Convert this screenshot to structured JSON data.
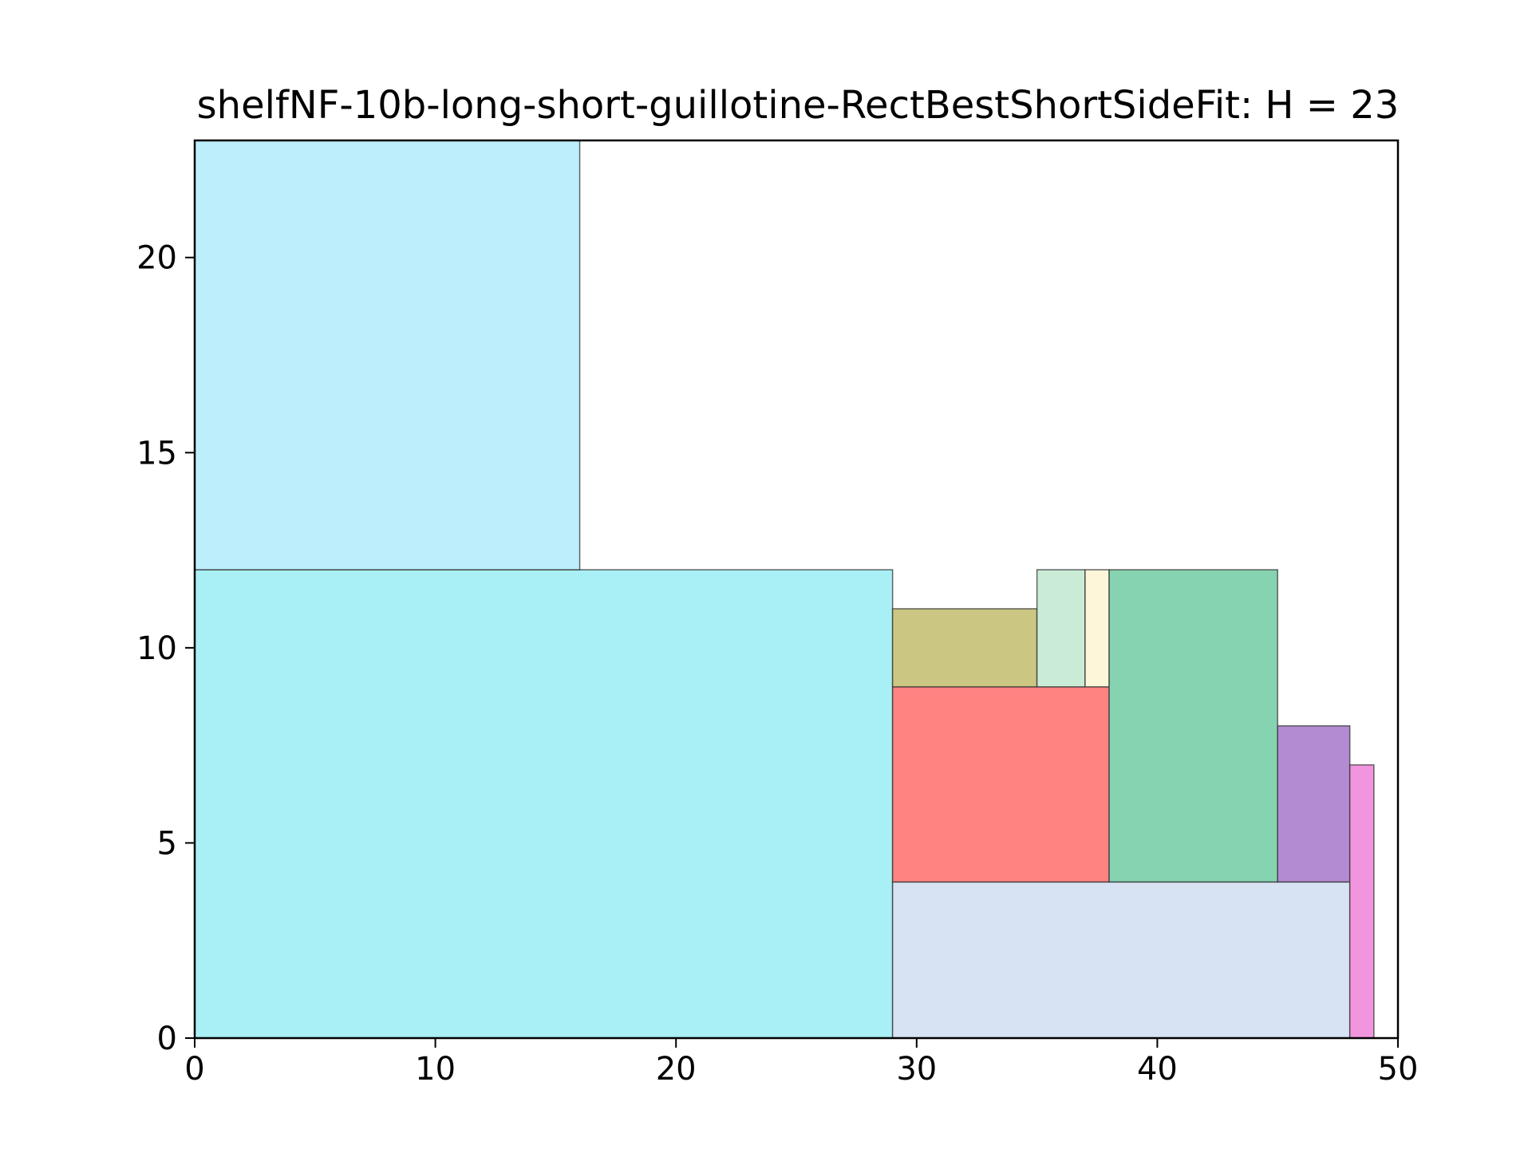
{
  "chart_data": {
    "type": "rectangle-packing",
    "title": "shelfNF-10b-long-short-guillotine-RectBestShortSideFit: H = 23",
    "xlim": [
      0,
      50
    ],
    "ylim": [
      0,
      23
    ],
    "x_ticks": [
      0,
      10,
      20,
      30,
      40,
      50
    ],
    "y_ticks": [
      0,
      5,
      10,
      15,
      20
    ],
    "grid": false,
    "rectangles": [
      {
        "x": 0,
        "y": 0,
        "width": 29,
        "height": 12,
        "color": "#a8f0f5"
      },
      {
        "x": 0,
        "y": 12,
        "width": 16,
        "height": 11,
        "color": "#bceefb"
      },
      {
        "x": 29,
        "y": 0,
        "width": 19,
        "height": 4,
        "color": "#d7e3f3"
      },
      {
        "x": 29,
        "y": 4,
        "width": 9,
        "height": 5,
        "color": "#ff8381"
      },
      {
        "x": 29,
        "y": 9,
        "width": 6,
        "height": 2,
        "color": "#cbc783"
      },
      {
        "x": 35,
        "y": 9,
        "width": 2,
        "height": 3,
        "color": "#caecd6"
      },
      {
        "x": 37,
        "y": 9,
        "width": 1,
        "height": 3,
        "color": "#fdf6d9"
      },
      {
        "x": 38,
        "y": 4,
        "width": 7,
        "height": 8,
        "color": "#86d3b1"
      },
      {
        "x": 45,
        "y": 4,
        "width": 3,
        "height": 4,
        "color": "#b28bd3"
      },
      {
        "x": 48,
        "y": 0,
        "width": 1,
        "height": 7,
        "color": "#f196de"
      }
    ]
  }
}
